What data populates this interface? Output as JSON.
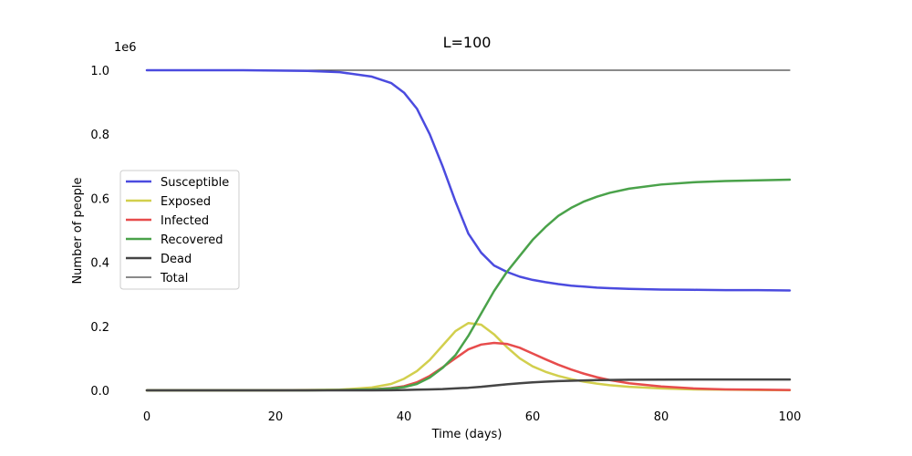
{
  "chart_data": {
    "type": "line",
    "title": "L=100",
    "xlabel": "Time (days)",
    "ylabel": "Number of people",
    "y_offset_label": "1e6",
    "xlim": [
      0,
      100
    ],
    "ylim": [
      0,
      1.0
    ],
    "x_ticks": [
      0,
      20,
      40,
      60,
      80,
      100
    ],
    "x_tick_labels": [
      "0",
      "20",
      "40",
      "60",
      "80",
      "100"
    ],
    "y_ticks": [
      0.0,
      0.2,
      0.4,
      0.6,
      0.8,
      1.0
    ],
    "y_tick_labels": [
      "0.0",
      "0.2",
      "0.4",
      "0.6",
      "0.8",
      "1.0"
    ],
    "grid": false,
    "legend_position": "center-left",
    "x": [
      0,
      5,
      10,
      15,
      20,
      25,
      30,
      35,
      38,
      40,
      42,
      44,
      46,
      48,
      50,
      52,
      54,
      56,
      58,
      60,
      62,
      64,
      66,
      68,
      70,
      72,
      75,
      80,
      85,
      90,
      95,
      100
    ],
    "series": [
      {
        "name": "Susceptible",
        "color": "#4b4bdf",
        "width": 2.5,
        "values": [
          1.0,
          1.0,
          1.0,
          1.0,
          0.999,
          0.998,
          0.994,
          0.98,
          0.96,
          0.93,
          0.88,
          0.8,
          0.7,
          0.59,
          0.49,
          0.43,
          0.39,
          0.37,
          0.355,
          0.345,
          0.338,
          0.332,
          0.327,
          0.324,
          0.321,
          0.319,
          0.317,
          0.315,
          0.314,
          0.313,
          0.313,
          0.312
        ]
      },
      {
        "name": "Exposed",
        "color": "#d2cf4d",
        "width": 2.5,
        "values": [
          0.0,
          0.0,
          0.0,
          0.0,
          0.0005,
          0.001,
          0.002,
          0.009,
          0.02,
          0.036,
          0.06,
          0.095,
          0.14,
          0.185,
          0.21,
          0.205,
          0.175,
          0.135,
          0.1,
          0.075,
          0.058,
          0.045,
          0.035,
          0.027,
          0.021,
          0.016,
          0.011,
          0.006,
          0.003,
          0.002,
          0.001,
          0.0005
        ]
      },
      {
        "name": "Infected",
        "color": "#e74c4c",
        "width": 2.5,
        "values": [
          0.0,
          0.0,
          0.0,
          0.0,
          0.0,
          0.0005,
          0.001,
          0.003,
          0.007,
          0.013,
          0.025,
          0.045,
          0.072,
          0.1,
          0.128,
          0.143,
          0.148,
          0.145,
          0.133,
          0.115,
          0.097,
          0.08,
          0.065,
          0.052,
          0.041,
          0.032,
          0.022,
          0.012,
          0.006,
          0.003,
          0.002,
          0.001
        ]
      },
      {
        "name": "Recovered",
        "color": "#4aa24a",
        "width": 2.5,
        "values": [
          0.0,
          0.0,
          0.0,
          0.0,
          0.0,
          0.0,
          0.001,
          0.003,
          0.006,
          0.01,
          0.02,
          0.04,
          0.07,
          0.11,
          0.17,
          0.24,
          0.31,
          0.37,
          0.42,
          0.47,
          0.51,
          0.545,
          0.57,
          0.59,
          0.605,
          0.617,
          0.63,
          0.643,
          0.65,
          0.654,
          0.656,
          0.658
        ]
      },
      {
        "name": "Dead",
        "color": "#454545",
        "width": 2.5,
        "values": [
          0.0,
          0.0,
          0.0,
          0.0,
          0.0,
          0.0,
          0.0,
          0.0,
          0.0005,
          0.001,
          0.002,
          0.003,
          0.004,
          0.006,
          0.008,
          0.011,
          0.015,
          0.019,
          0.022,
          0.025,
          0.027,
          0.029,
          0.03,
          0.031,
          0.032,
          0.0325,
          0.033,
          0.0335,
          0.034,
          0.034,
          0.034,
          0.034
        ]
      },
      {
        "name": "Total",
        "color": "#454545",
        "width": 1.2,
        "values": [
          1.0,
          1.0,
          1.0,
          1.0,
          1.0,
          1.0,
          1.0,
          1.0,
          1.0,
          1.0,
          1.0,
          1.0,
          1.0,
          1.0,
          1.0,
          1.0,
          1.0,
          1.0,
          1.0,
          1.0,
          1.0,
          1.0,
          1.0,
          1.0,
          1.0,
          1.0,
          1.0,
          1.0,
          1.0,
          1.0,
          1.0,
          1.0
        ]
      }
    ]
  }
}
